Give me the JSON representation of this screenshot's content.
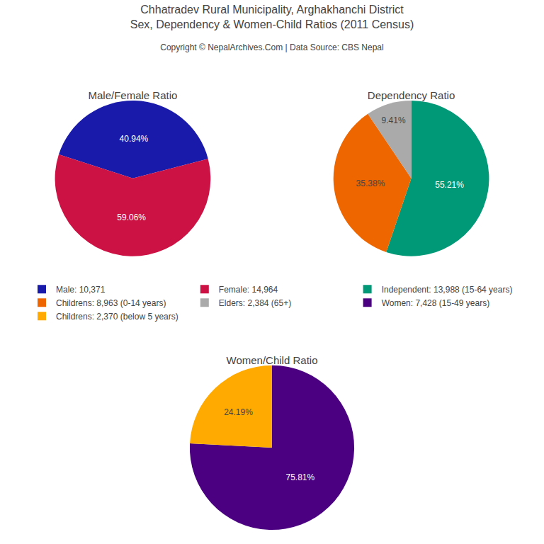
{
  "title": "Chhatradev Rural Municipality, Arghakhanchi District\nSex, Dependency & Women-Child Ratios (2011 Census)",
  "subtitle": "Copyright © NepalArchives.Com | Data Source: CBS Nepal",
  "chart_data": [
    {
      "type": "pie",
      "title": "Male/Female Ratio",
      "categories": [
        "Male: 10,371",
        "Female: 14,964"
      ],
      "values": [
        40.94,
        59.06
      ],
      "value_labels": [
        "40.94%",
        "59.06%"
      ],
      "colors": [
        "#1a1aaa",
        "#cc1144"
      ],
      "data_labels": true,
      "legend": "center"
    },
    {
      "type": "pie",
      "title": "Dependency Ratio",
      "categories": [
        "Independent: 13,988 (15-64 years)",
        "Childrens: 8,963 (0-14 years)",
        "Elders: 2,384 (65+)"
      ],
      "values": [
        55.21,
        35.38,
        9.41
      ],
      "value_labels": [
        "55.21%",
        "35.38%",
        "9.41%"
      ],
      "colors": [
        "#009977",
        "#ee6600",
        "#aaaaaa"
      ],
      "data_labels": true,
      "legend": "center"
    },
    {
      "type": "pie",
      "title": "Women/Child Ratio",
      "categories": [
        "Women: 7,428 (15-49 years)",
        "Childrens: 2,370 (below 5 years)"
      ],
      "values": [
        75.81,
        24.19
      ],
      "value_labels": [
        "75.81%",
        "24.19%"
      ],
      "colors": [
        "#4b0082",
        "#ffaa00"
      ],
      "data_labels": true,
      "legend": "center"
    }
  ]
}
